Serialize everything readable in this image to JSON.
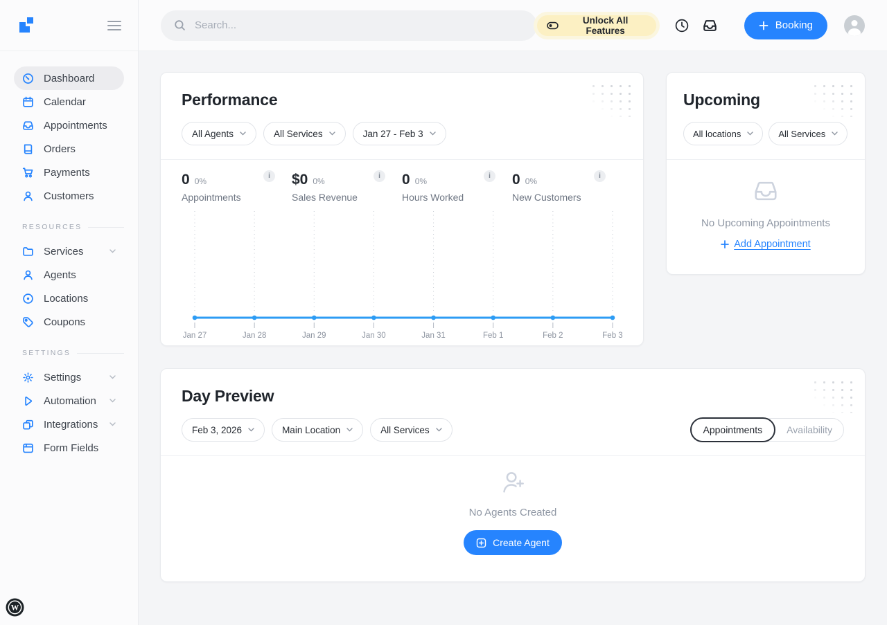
{
  "colors": {
    "accent": "#2684fe",
    "chart_line": "#2d9cf4",
    "unlock_bg": "#fcf0c3",
    "card_bg": "#ffffff",
    "page_bg": "#f4f5f7",
    "muted_text": "#8f97a4"
  },
  "ui": {
    "info_badge": "i"
  },
  "topbar": {
    "search_placeholder": "Search...",
    "search_icon": "magnifier-icon",
    "unlock_button": "Unlock All Features",
    "unlock_icon": "toggle-icon",
    "history_icon": "clock-icon",
    "inbox_icon": "inbox-icon",
    "booking_button": "Booking",
    "avatar_icon": "user-avatar"
  },
  "sidebar": {
    "logo_icon": "latepoint-logo",
    "menu_icon": "hamburger-icon",
    "main": [
      {
        "label": "Dashboard",
        "icon": "dashboard-icon",
        "active": true
      },
      {
        "label": "Calendar",
        "icon": "calendar-icon"
      },
      {
        "label": "Appointments",
        "icon": "inbox-icon"
      },
      {
        "label": "Orders",
        "icon": "book-icon"
      },
      {
        "label": "Payments",
        "icon": "cart-icon"
      },
      {
        "label": "Customers",
        "icon": "person-icon"
      }
    ],
    "resources_header": "RESOURCES",
    "resources": [
      {
        "label": "Services",
        "icon": "folder-icon",
        "expandable": true
      },
      {
        "label": "Agents",
        "icon": "person-icon"
      },
      {
        "label": "Locations",
        "icon": "location-icon"
      },
      {
        "label": "Coupons",
        "icon": "tag-icon"
      }
    ],
    "settings_header": "SETTINGS",
    "settings": [
      {
        "label": "Settings",
        "icon": "gear-icon",
        "expandable": true
      },
      {
        "label": "Automation",
        "icon": "play-icon",
        "expandable": true
      },
      {
        "label": "Integrations",
        "icon": "squares-icon",
        "expandable": true
      },
      {
        "label": "Form Fields",
        "icon": "window-icon"
      }
    ],
    "wordpress_icon": "wordpress-logo"
  },
  "performance": {
    "title": "Performance",
    "filters": [
      {
        "label": "All Agents"
      },
      {
        "label": "All Services"
      },
      {
        "label": "Jan 27 - Feb 3"
      }
    ],
    "stats": [
      {
        "value": "0",
        "percent": "0%",
        "label": "Appointments"
      },
      {
        "value": "$0",
        "percent": "0%",
        "label": "Sales Revenue"
      },
      {
        "value": "0",
        "percent": "0%",
        "label": "Hours Worked"
      },
      {
        "value": "0",
        "percent": "0%",
        "label": "New Customers"
      }
    ]
  },
  "chart_data": {
    "type": "line",
    "title": "Performance",
    "categories": [
      "Jan 27",
      "Jan 28",
      "Jan 29",
      "Jan 30",
      "Jan 31",
      "Feb 1",
      "Feb 2",
      "Feb 3"
    ],
    "series": [
      {
        "name": "Appointments",
        "values": [
          0,
          0,
          0,
          0,
          0,
          0,
          0,
          0
        ]
      }
    ],
    "xlabel": "",
    "ylabel": "",
    "ylim": [
      0,
      1
    ],
    "grid": "vertical-dotted",
    "legend": "none",
    "line_color": "#2d9cf4",
    "grid_color": "#c6cbd3",
    "tick_color": "#b4bac4",
    "label_color": "#8d94a0"
  },
  "upcoming": {
    "title": "Upcoming",
    "filters": [
      {
        "label": "All locations"
      },
      {
        "label": "All Services"
      }
    ],
    "empty_icon": "inbox-icon",
    "empty_text": "No Upcoming Appointments",
    "add_link": "Add Appointment"
  },
  "day_preview": {
    "title": "Day Preview",
    "filters": [
      {
        "label": "Feb 3, 2026"
      },
      {
        "label": "Main Location"
      },
      {
        "label": "All Services"
      }
    ],
    "tabs": [
      {
        "label": "Appointments",
        "active": true
      },
      {
        "label": "Availability",
        "active": false
      }
    ],
    "empty_icon": "person-plus-icon",
    "empty_text": "No Agents Created",
    "create_button": "Create Agent"
  }
}
